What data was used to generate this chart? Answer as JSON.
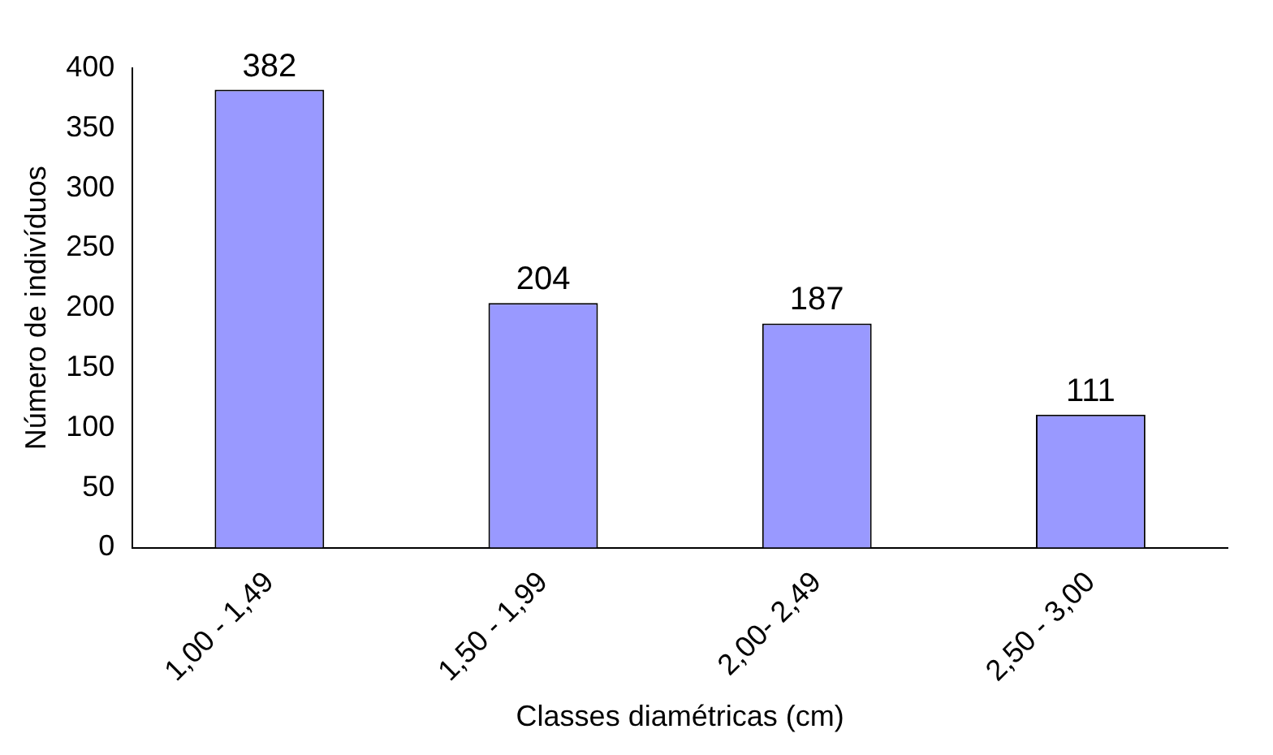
{
  "chart_data": {
    "type": "bar",
    "xlabel": "Classes diamétricas (cm)",
    "ylabel": "Número de indivíduos",
    "categories": [
      "1,00 - 1,49",
      "1,50 - 1,99",
      "2,00- 2,49",
      "2,50 - 3,00"
    ],
    "values": [
      382,
      204,
      187,
      111
    ],
    "color": "#9999ff",
    "ylim": [
      0,
      400
    ],
    "yticks": [
      0,
      50,
      100,
      150,
      200,
      250,
      300,
      350,
      400
    ],
    "grid": false,
    "data_labels": true
  }
}
